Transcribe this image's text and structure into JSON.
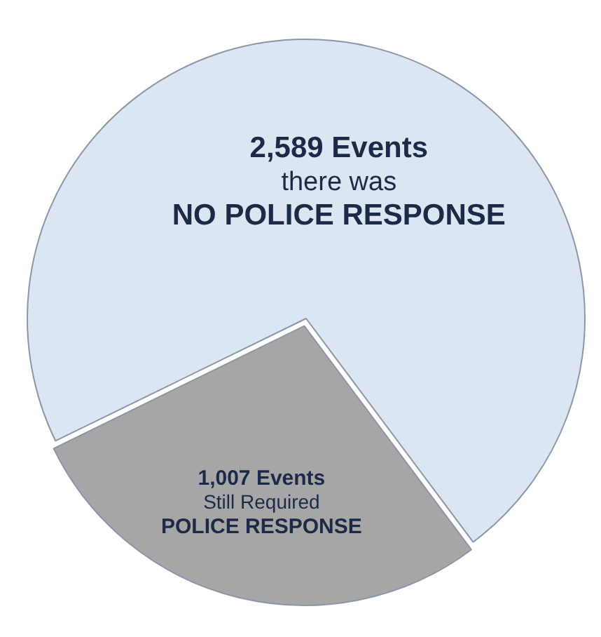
{
  "chart_data": {
    "type": "pie",
    "categories": [
      "NO POLICE RESPONSE",
      "POLICE RESPONSE"
    ],
    "values": [
      2589,
      1007
    ],
    "colors": [
      "#dce6f2",
      "#a6a6a6"
    ],
    "value_labels": [
      "2,589 Events",
      "1,007 Events"
    ],
    "annotations": [
      "there was",
      "Still Required"
    ],
    "legend": false
  }
}
